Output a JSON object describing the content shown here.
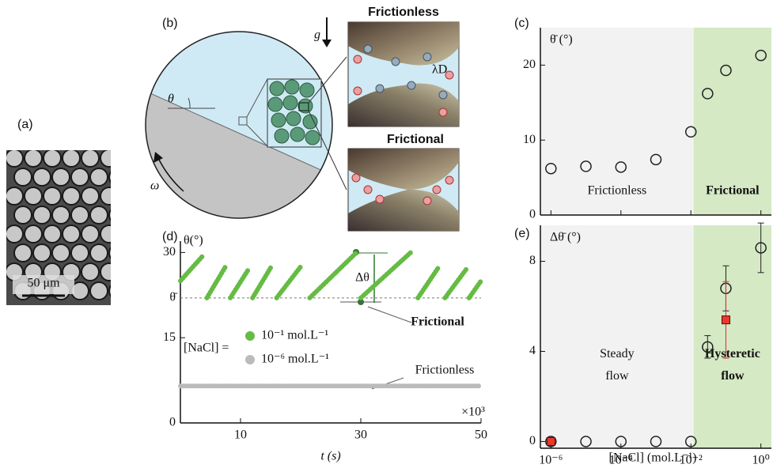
{
  "panels": {
    "a": {
      "label": "(a)",
      "scale_bar": "50 μm"
    },
    "b": {
      "label": "(b)",
      "gravity": "g",
      "angle": "θ",
      "rotation": "ω",
      "inset_top": "Frictionless",
      "inset_bottom": "Frictional",
      "debye": "λD"
    }
  },
  "chart_data": [
    {
      "panel": "(c)",
      "type": "scatter",
      "ylabel": "θ̄ (°)",
      "xscale": "log",
      "xlim": [
        5e-07,
        2
      ],
      "xticks": [
        1e-06,
        0.0001,
        0.01,
        1
      ],
      "show_xtick_labels": false,
      "ylim": [
        0,
        25
      ],
      "yticks": [
        0,
        10,
        20
      ],
      "regions": [
        {
          "label": [
            "Frictionless"
          ],
          "color": "#f2f2f2",
          "text_color": "#aaaaaa",
          "x": [
            5e-07,
            0.012
          ]
        },
        {
          "label": [
            "Frictional"
          ],
          "color": "#d4e9c4",
          "text_color": "#5cb83c",
          "x": [
            0.012,
            2
          ]
        }
      ],
      "series": [
        {
          "color": "#222222",
          "marker": "open-circle",
          "x": [
            1e-06,
            1e-05,
            0.0001,
            0.001,
            0.01,
            0.03,
            0.1,
            1
          ],
          "values": [
            6.2,
            6.5,
            6.4,
            7.4,
            11.1,
            16.2,
            19.3,
            21.3
          ]
        }
      ]
    },
    {
      "panel": "(d)",
      "type": "line",
      "ylabel": "θ(°)",
      "xlabel": "t (s)",
      "x_multiplier": "×10³",
      "xlim": [
        0,
        50
      ],
      "xticks": [
        10,
        30,
        50
      ],
      "ylim": [
        0,
        32
      ],
      "yticks": [
        0,
        15,
        30,
        {
          "value": 22,
          "label": "θ̄"
        }
      ],
      "legend_title": "[NaCl] =",
      "annotations": {
        "frictional": "Frictional",
        "frictionless": "Frictionless",
        "amplitude": "Δθ"
      },
      "series": [
        {
          "name": "10⁻¹ mol.L⁻¹",
          "color": "#66bb44",
          "x": [
            0,
            3.8,
            4.1,
            4.4,
            7.5,
            7.9,
            8.3,
            11.3,
            11.6,
            12,
            15,
            15.5,
            16,
            20,
            20.7,
            21.5,
            29.3,
            29.6,
            30,
            38.3,
            38.9,
            39.5,
            43,
            43.5,
            44,
            47.5,
            47.7,
            48,
            50
          ],
          "values": [
            25,
            29.5,
            null,
            22,
            27.5,
            null,
            22,
            27,
            null,
            22,
            27.3,
            null,
            22,
            27.5,
            null,
            22,
            30,
            null,
            22,
            30,
            null,
            22,
            27.5,
            null,
            22,
            27,
            null,
            22,
            25
          ]
        },
        {
          "name": "10⁻⁶ mol.L⁻¹",
          "color": "#bbbbbb",
          "x": [
            0,
            50
          ],
          "values": [
            6.5,
            6.5
          ]
        }
      ]
    },
    {
      "panel": "(e)",
      "type": "scatter",
      "ylabel": "Δθ̄ (°)",
      "xlabel": "[NaCl] (mol.L⁻¹)",
      "xscale": "log",
      "xlim": [
        5e-07,
        2
      ],
      "xticks": [
        {
          "value": 1e-06,
          "label": "10⁻⁶"
        },
        {
          "value": 0.0001,
          "label": "10⁻⁴"
        },
        {
          "value": 0.01,
          "label": "10⁻²"
        },
        {
          "value": 1,
          "label": "10⁰"
        }
      ],
      "ylim": [
        -0.3,
        9.6
      ],
      "yticks": [
        0,
        4,
        8
      ],
      "regions": [
        {
          "label": [
            "Steady",
            "flow"
          ],
          "color": "#f2f2f2",
          "text_color": "#aaaaaa",
          "x": [
            5e-07,
            0.012
          ]
        },
        {
          "label": [
            "Hysteretic",
            "flow"
          ],
          "color": "#d4e9c4",
          "text_color": "#5cb83c",
          "x": [
            0.012,
            2
          ]
        }
      ],
      "series": [
        {
          "color": "#222222",
          "marker": "open-circle",
          "x": [
            1e-06,
            1e-05,
            0.0001,
            0.001,
            0.01,
            0.03,
            0.1,
            1
          ],
          "values": [
            0,
            0,
            0,
            0,
            0,
            4.2,
            6.8,
            8.6
          ],
          "errors": [
            null,
            null,
            null,
            null,
            null,
            0.5,
            1.0,
            1.1
          ]
        },
        {
          "color": "#e8392f",
          "marker": "square",
          "x": [
            1e-06,
            0.1
          ],
          "values": [
            0,
            5.4
          ],
          "errors": [
            null,
            1.7
          ]
        }
      ]
    }
  ]
}
